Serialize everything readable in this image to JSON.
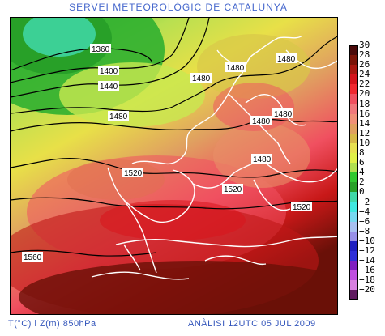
{
  "header": {
    "title": "SERVEI METEOROLÒGIC DE CATALUNYA"
  },
  "footer": {
    "left": "T(°C) i Z(m) 850hPa",
    "right": "ANÀLISI 12UTC 05 JUL 2009"
  },
  "legend": {
    "labels": [
      "30",
      "28",
      "26",
      "24",
      "22",
      "20",
      "18",
      "16",
      "14",
      "12",
      "10",
      "8",
      "6",
      "4",
      "2",
      "0",
      "−2",
      "−4",
      "−6",
      "−8",
      "−10",
      "−12",
      "−14",
      "−16",
      "−18",
      "−20"
    ],
    "colors": [
      "#4a0a0a",
      "#7a1408",
      "#a81810",
      "#d4141c",
      "#f02830",
      "#f05060",
      "#f0787c",
      "#f09078",
      "#e0a060",
      "#d8b848",
      "#e8e050",
      "#e0f048",
      "#b0e050",
      "#30c830",
      "#28a028",
      "#40d8a8",
      "#40e8e0",
      "#78d8f0",
      "#a8c0f0",
      "#9890e8",
      "#2020c0",
      "#3030d8",
      "#8020c0",
      "#c050e0",
      "#d880e0",
      "#601a60"
    ]
  },
  "map": {
    "variable": "temperature_850hPa",
    "units_temperature": "°C",
    "units_height": "m",
    "contour_labels": [
      {
        "text": "1360"
      },
      {
        "text": "1400"
      },
      {
        "text": "1440"
      },
      {
        "text": "1480"
      },
      {
        "text": "1480"
      },
      {
        "text": "1480"
      },
      {
        "text": "1480"
      },
      {
        "text": "1480"
      },
      {
        "text": "1480"
      },
      {
        "text": "1480"
      },
      {
        "text": "1520"
      },
      {
        "text": "1520"
      },
      {
        "text": "1520"
      },
      {
        "text": "1560"
      }
    ]
  }
}
